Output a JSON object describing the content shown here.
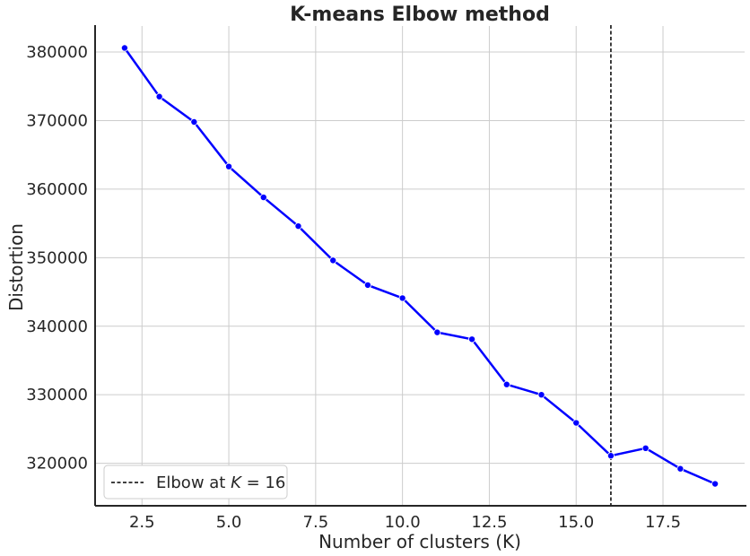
{
  "chart_data": {
    "type": "line",
    "title": "K-means Elbow method",
    "xlabel": "Number of clusters (K)",
    "ylabel": "Distortion",
    "xlim": [
      1.15,
      19.85
    ],
    "ylim": [
      313800,
      383800
    ],
    "grid": true,
    "legend_position": "bottom-left",
    "x_ticks": [
      2.5,
      5.0,
      7.5,
      10.0,
      12.5,
      15.0,
      17.5
    ],
    "x_tick_labels": [
      "2.5",
      "5.0",
      "7.5",
      "10.0",
      "12.5",
      "15.0",
      "17.5"
    ],
    "y_ticks": [
      320000,
      330000,
      340000,
      350000,
      360000,
      370000,
      380000
    ],
    "y_tick_labels": [
      "320000",
      "330000",
      "340000",
      "350000",
      "360000",
      "370000",
      "380000"
    ],
    "series": [
      {
        "color": "#0000ff",
        "x": [
          2,
          3,
          4,
          5,
          6,
          7,
          8,
          9,
          10,
          11,
          12,
          13,
          14,
          15,
          16,
          17,
          18,
          19
        ],
        "y": [
          380600,
          373500,
          369800,
          363300,
          358800,
          354600,
          349600,
          346000,
          344100,
          339100,
          338100,
          331500,
          330000,
          325900,
          321100,
          322200,
          319200,
          317000
        ]
      }
    ],
    "vline": {
      "x": 16,
      "color": "#000000",
      "style": "dashed",
      "label": "Elbow at K = 16"
    }
  },
  "legend": {
    "prefix": "Elbow at ",
    "var": "K",
    "suffix": " = 16"
  }
}
